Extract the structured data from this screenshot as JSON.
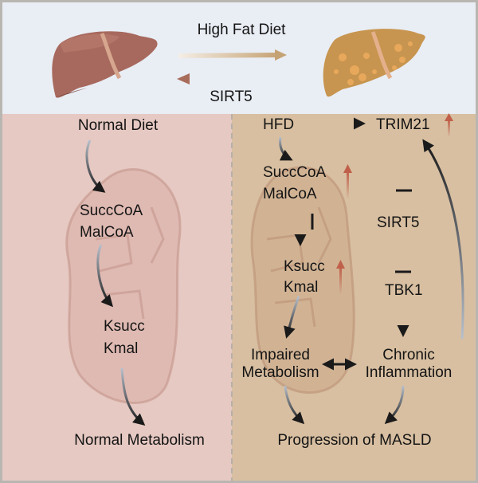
{
  "header": {
    "forward_label": "High Fat Diet",
    "reverse_label": "SIRT5",
    "liver_healthy_icon": "healthy-liver",
    "liver_fatty_icon": "fatty-liver"
  },
  "left_panel": {
    "start": "Normal Diet",
    "metabolite_1": "SuccCoA",
    "metabolite_2": "MalCoA",
    "mod_1": "Ksucc",
    "mod_2": "Kmal",
    "outcome": "Normal Metabolism"
  },
  "right_panel": {
    "start": "HFD",
    "trim21": "TRIM21",
    "metabolite_1": "SuccCoA",
    "metabolite_2": "MalCoA",
    "sirt5": "SIRT5",
    "mod_1": "Ksucc",
    "mod_2": "Kmal",
    "tbk1": "TBK1",
    "impaired_1": "Impaired",
    "impaired_2": "Metabolism",
    "inflam_1": "Chronic",
    "inflam_2": "Inflammation",
    "outcome": "Progression of MASLD"
  },
  "colors": {
    "top_bg": "#e9edf4",
    "left_bg": "#e6c9c2",
    "right_bg": "#d8bfa1",
    "up_arrow": "#c0604a"
  }
}
